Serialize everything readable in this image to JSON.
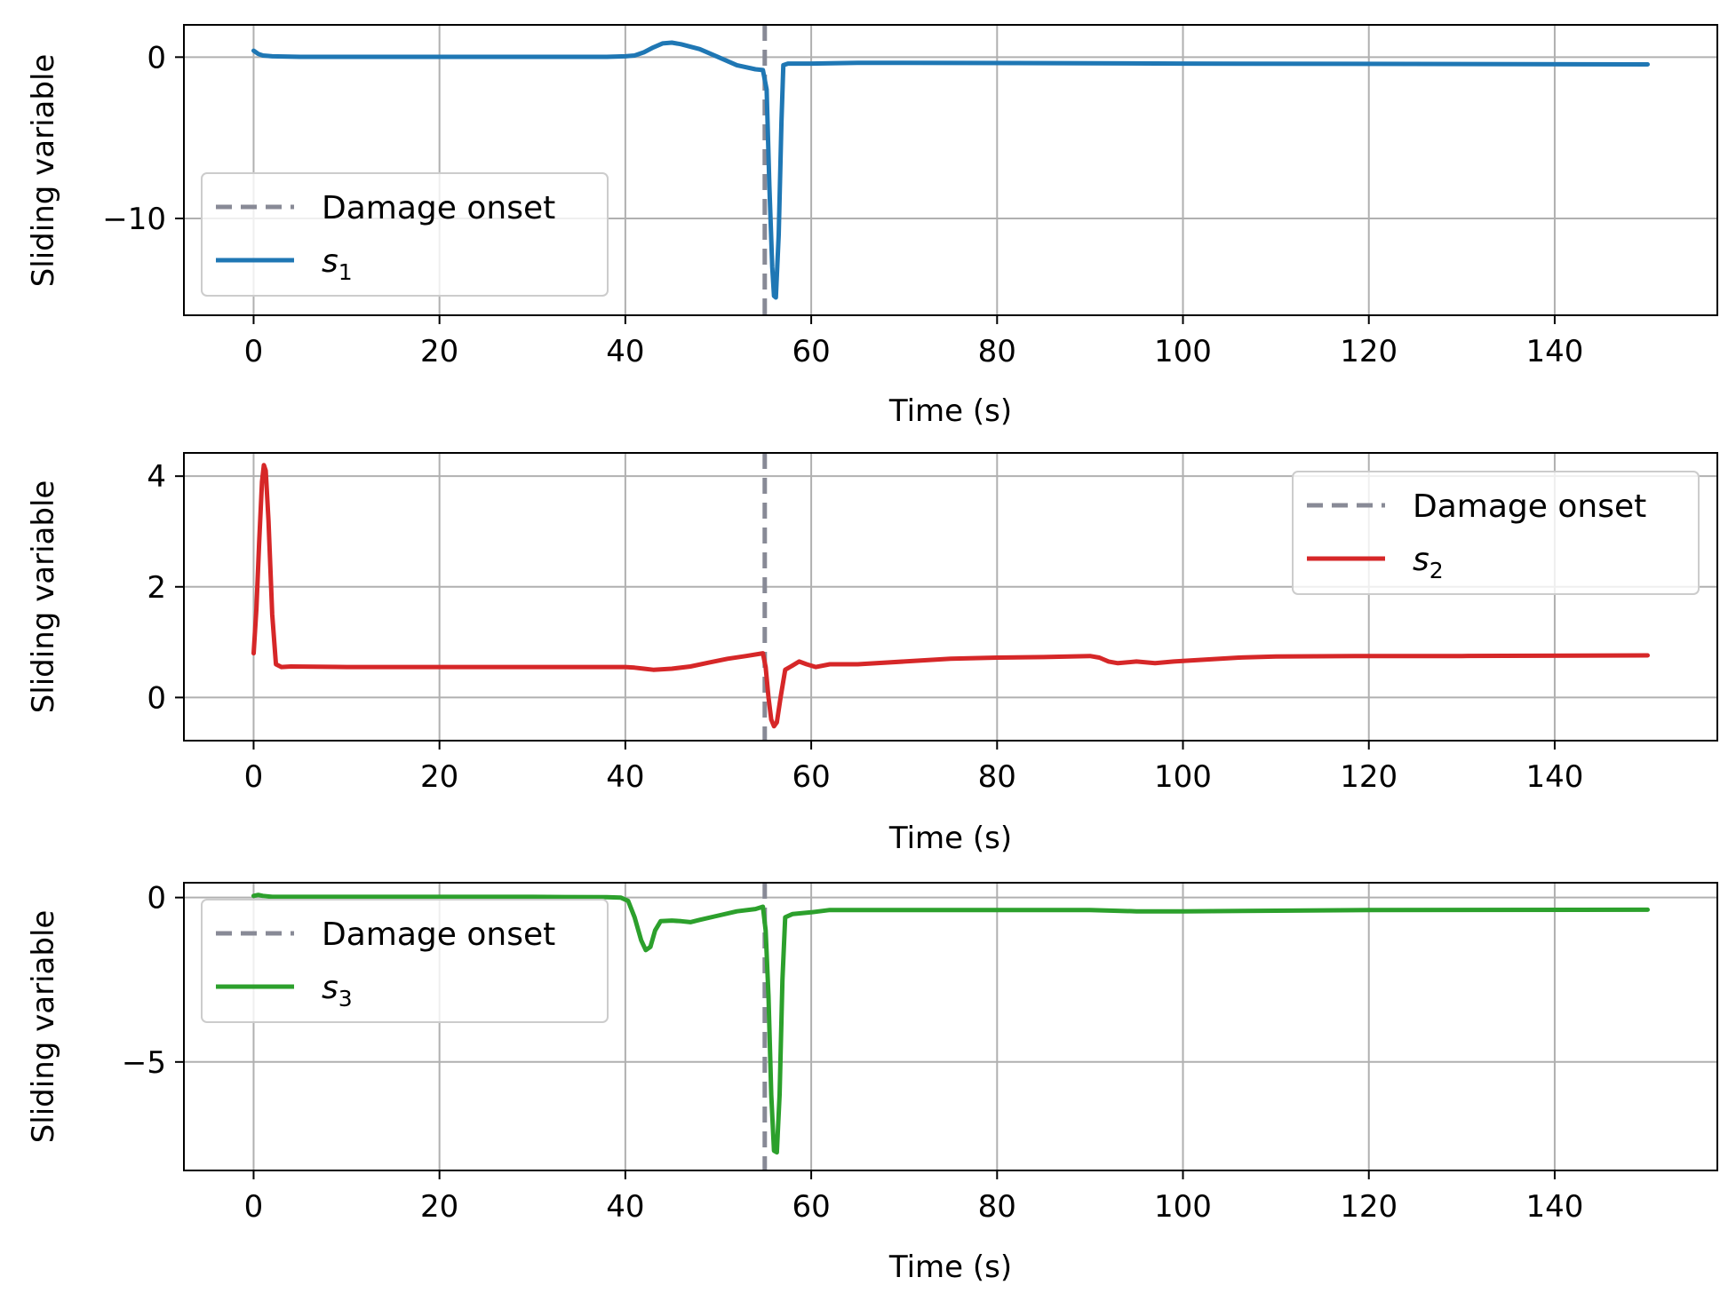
{
  "chart_data": [
    {
      "type": "line",
      "xlabel": "Time (s)",
      "ylabel": "Sliding variable",
      "xlim": [
        -7.5,
        157.5
      ],
      "ylim": [
        -16,
        2
      ],
      "xticks": [
        0,
        20,
        40,
        60,
        80,
        100,
        120,
        140
      ],
      "yticks": [
        0,
        -10
      ],
      "ytick_labels": [
        "0",
        "−10"
      ],
      "grid": true,
      "legend_position": "lower-left",
      "vline": {
        "x": 55,
        "label": "Damage onset",
        "color": "#888a96"
      },
      "series": [
        {
          "name": "s",
          "subscript": "1",
          "color": "#1f77b4",
          "points": [
            [
              0,
              0.4
            ],
            [
              0.5,
              0.2
            ],
            [
              1,
              0.1
            ],
            [
              2,
              0.05
            ],
            [
              5,
              0.02
            ],
            [
              20,
              0.02
            ],
            [
              38,
              0.02
            ],
            [
              40,
              0.05
            ],
            [
              41,
              0.1
            ],
            [
              42,
              0.3
            ],
            [
              43,
              0.6
            ],
            [
              44,
              0.85
            ],
            [
              45,
              0.9
            ],
            [
              46,
              0.8
            ],
            [
              48,
              0.5
            ],
            [
              50,
              0.0
            ],
            [
              52,
              -0.5
            ],
            [
              54,
              -0.75
            ],
            [
              54.8,
              -0.8
            ],
            [
              55.2,
              -2.0
            ],
            [
              55.5,
              -8.0
            ],
            [
              55.8,
              -13.0
            ],
            [
              56.0,
              -14.8
            ],
            [
              56.2,
              -14.9
            ],
            [
              56.5,
              -11.0
            ],
            [
              56.8,
              -4.0
            ],
            [
              57.0,
              -0.5
            ],
            [
              57.5,
              -0.4
            ],
            [
              60,
              -0.4
            ],
            [
              65,
              -0.35
            ],
            [
              70,
              -0.35
            ],
            [
              100,
              -0.4
            ],
            [
              150,
              -0.45
            ]
          ]
        }
      ]
    },
    {
      "type": "line",
      "xlabel": "Time (s)",
      "ylabel": "Sliding variable",
      "xlim": [
        -7.5,
        157.5
      ],
      "ylim": [
        -0.78,
        4.42
      ],
      "xticks": [
        0,
        20,
        40,
        60,
        80,
        100,
        120,
        140
      ],
      "yticks": [
        4,
        2,
        0
      ],
      "ytick_labels": [
        "4",
        "2",
        "0"
      ],
      "grid": true,
      "legend_position": "upper-right",
      "vline": {
        "x": 55,
        "label": "Damage onset",
        "color": "#888a96"
      },
      "series": [
        {
          "name": "s",
          "subscript": "2",
          "color": "#d62728",
          "points": [
            [
              0,
              0.8
            ],
            [
              0.3,
              1.6
            ],
            [
              0.6,
              2.8
            ],
            [
              0.9,
              3.9
            ],
            [
              1.1,
              4.2
            ],
            [
              1.3,
              4.1
            ],
            [
              1.6,
              3.2
            ],
            [
              2.0,
              1.5
            ],
            [
              2.4,
              0.6
            ],
            [
              3,
              0.55
            ],
            [
              4,
              0.56
            ],
            [
              10,
              0.55
            ],
            [
              30,
              0.55
            ],
            [
              40,
              0.55
            ],
            [
              41,
              0.54
            ],
            [
              42,
              0.52
            ],
            [
              43,
              0.5
            ],
            [
              45,
              0.52
            ],
            [
              47,
              0.56
            ],
            [
              49,
              0.63
            ],
            [
              51,
              0.7
            ],
            [
              53,
              0.75
            ],
            [
              54.8,
              0.8
            ],
            [
              55.1,
              0.55
            ],
            [
              55.4,
              0.0
            ],
            [
              55.7,
              -0.4
            ],
            [
              56.0,
              -0.52
            ],
            [
              56.3,
              -0.45
            ],
            [
              56.7,
              0.0
            ],
            [
              57.2,
              0.5
            ],
            [
              58,
              0.58
            ],
            [
              58.7,
              0.65
            ],
            [
              59.5,
              0.6
            ],
            [
              60.5,
              0.55
            ],
            [
              62,
              0.6
            ],
            [
              65,
              0.6
            ],
            [
              70,
              0.65
            ],
            [
              75,
              0.7
            ],
            [
              80,
              0.72
            ],
            [
              85,
              0.73
            ],
            [
              90,
              0.75
            ],
            [
              91,
              0.72
            ],
            [
              92,
              0.65
            ],
            [
              93,
              0.62
            ],
            [
              95,
              0.65
            ],
            [
              97,
              0.62
            ],
            [
              99,
              0.65
            ],
            [
              102,
              0.68
            ],
            [
              106,
              0.72
            ],
            [
              110,
              0.74
            ],
            [
              120,
              0.75
            ],
            [
              130,
              0.75
            ],
            [
              150,
              0.76
            ]
          ]
        }
      ]
    },
    {
      "type": "line",
      "xlabel": "Time (s)",
      "ylabel": "Sliding variable",
      "xlim": [
        -7.5,
        157.5
      ],
      "ylim": [
        -8.3,
        0.45
      ],
      "xticks": [
        0,
        20,
        40,
        60,
        80,
        100,
        120,
        140
      ],
      "yticks": [
        0,
        -5
      ],
      "ytick_labels": [
        "0",
        "−5"
      ],
      "grid": true,
      "legend_position": "upper-left",
      "vline": {
        "x": 55,
        "label": "Damage onset",
        "color": "#888a96"
      },
      "series": [
        {
          "name": "s",
          "subscript": "3",
          "color": "#2ca02c",
          "points": [
            [
              0,
              0.05
            ],
            [
              0.5,
              0.08
            ],
            [
              1,
              0.05
            ],
            [
              2,
              0.02
            ],
            [
              10,
              0.02
            ],
            [
              30,
              0.02
            ],
            [
              38,
              0.01
            ],
            [
              39.5,
              0.0
            ],
            [
              40.3,
              -0.1
            ],
            [
              41,
              -0.6
            ],
            [
              41.7,
              -1.3
            ],
            [
              42.2,
              -1.6
            ],
            [
              42.7,
              -1.5
            ],
            [
              43.2,
              -1.0
            ],
            [
              43.8,
              -0.72
            ],
            [
              45,
              -0.7
            ],
            [
              46,
              -0.72
            ],
            [
              47,
              -0.75
            ],
            [
              48,
              -0.68
            ],
            [
              50,
              -0.55
            ],
            [
              52,
              -0.42
            ],
            [
              54,
              -0.35
            ],
            [
              54.8,
              -0.28
            ],
            [
              55.1,
              -1.0
            ],
            [
              55.4,
              -3.0
            ],
            [
              55.7,
              -6.0
            ],
            [
              56.0,
              -7.7
            ],
            [
              56.3,
              -7.75
            ],
            [
              56.6,
              -6.0
            ],
            [
              56.9,
              -2.5
            ],
            [
              57.2,
              -0.6
            ],
            [
              58,
              -0.5
            ],
            [
              60,
              -0.45
            ],
            [
              62,
              -0.38
            ],
            [
              65,
              -0.38
            ],
            [
              70,
              -0.38
            ],
            [
              80,
              -0.38
            ],
            [
              90,
              -0.38
            ],
            [
              95,
              -0.42
            ],
            [
              100,
              -0.42
            ],
            [
              110,
              -0.4
            ],
            [
              120,
              -0.38
            ],
            [
              150,
              -0.37
            ]
          ]
        }
      ]
    }
  ]
}
